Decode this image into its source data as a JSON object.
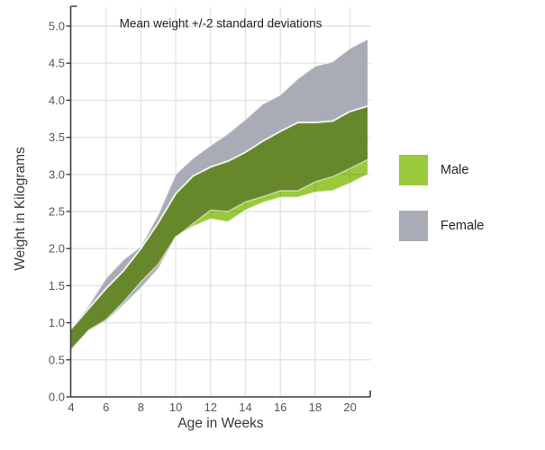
{
  "title": "Mean weight +/-2 standard deviations",
  "axis": {
    "xlabel": "Age in Weeks",
    "ylabel": "Weight in Kilograms"
  },
  "legend": [
    {
      "label": "Male",
      "color": "#9aca3c"
    },
    {
      "label": "Female",
      "color": "#a9abb6"
    }
  ],
  "colors": {
    "male": "#9aca3c",
    "female": "#a9abb6",
    "axis_line": "#3f3f3f",
    "grid_line": "#e4e4e7",
    "tick_label": "#55565a",
    "title_text": "#242424",
    "axis_title_text": "#3a3a3a",
    "band_edge_stroke": "rgba(255,255,255,0.85)"
  },
  "chart_data": {
    "type": "area",
    "subtype": "arearange",
    "title": "Mean weight +/-2 standard deviations",
    "xlabel": "Age in Weeks",
    "ylabel": "Weight in Kilograms",
    "x": [
      4,
      5,
      6,
      7,
      8,
      9,
      10,
      11,
      12,
      13,
      14,
      15,
      16,
      17,
      18,
      19,
      20,
      21
    ],
    "series": [
      {
        "name": "Male",
        "color": "#9aca3c",
        "low": [
          0.64,
          0.9,
          1.04,
          1.28,
          1.55,
          1.79,
          2.16,
          2.3,
          2.4,
          2.36,
          2.52,
          2.62,
          2.69,
          2.69,
          2.76,
          2.78,
          2.88,
          3.0
        ],
        "high": [
          0.92,
          1.19,
          1.46,
          1.7,
          2.0,
          2.35,
          2.74,
          2.98,
          3.1,
          3.18,
          3.3,
          3.45,
          3.58,
          3.7,
          3.7,
          3.72,
          3.85,
          3.92
        ]
      },
      {
        "name": "Female",
        "color": "#a9abb6",
        "low": [
          0.63,
          0.89,
          1.02,
          1.24,
          1.47,
          1.73,
          2.15,
          2.34,
          2.52,
          2.5,
          2.63,
          2.7,
          2.78,
          2.78,
          2.9,
          2.97,
          3.08,
          3.2
        ],
        "high": [
          0.93,
          1.23,
          1.6,
          1.85,
          2.03,
          2.46,
          3.0,
          3.22,
          3.39,
          3.55,
          3.74,
          3.95,
          4.07,
          4.29,
          4.46,
          4.52,
          4.7,
          4.82
        ]
      }
    ],
    "xlim": [
      4,
      21
    ],
    "ylim": [
      0,
      5.2
    ],
    "x_ticks": [
      4,
      6,
      8,
      10,
      12,
      14,
      16,
      18,
      20
    ],
    "x_tick_labels": [
      "4",
      "6",
      "8",
      "10",
      "12",
      "14",
      "16",
      "18",
      "20"
    ],
    "y_ticks": [
      0,
      0.5,
      1,
      1.5,
      2,
      2.5,
      3,
      3.5,
      4,
      4.5,
      5
    ],
    "y_tick_labels": [
      "0.0",
      "0.5",
      "1.0",
      "1.5",
      "2.0",
      "2.5",
      "3.0",
      "3.5",
      "4.0",
      "4.5",
      "5.0"
    ],
    "grid": true,
    "legend_position": "right",
    "overlap_blend": "multiply"
  }
}
